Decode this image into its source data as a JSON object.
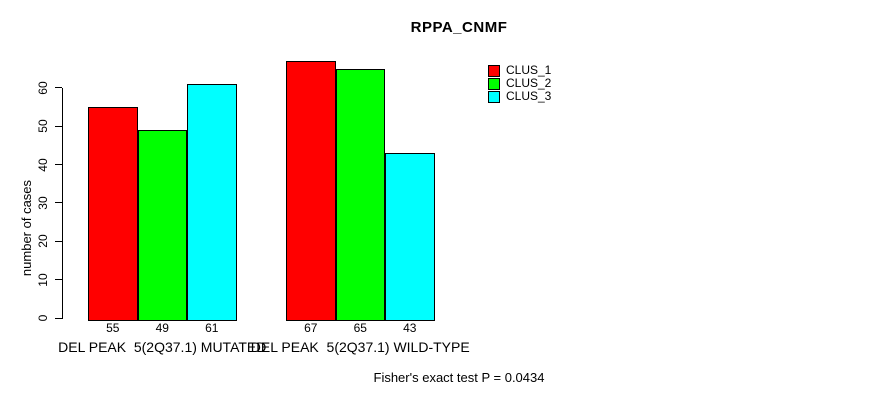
{
  "chart_data": {
    "type": "bar",
    "title": "RPPA_CNMF",
    "xlabel": "",
    "ylabel": "number of cases",
    "categories": [
      "DEL PEAK  5(2Q37.1) MUTATED",
      "DEL PEAK  5(2Q37.1) WILD-TYPE"
    ],
    "series": [
      {
        "name": "CLUS_1",
        "color": "#ff0000",
        "values": [
          55,
          67
        ]
      },
      {
        "name": "CLUS_2",
        "color": "#00ff00",
        "values": [
          49,
          65
        ]
      },
      {
        "name": "CLUS_3",
        "color": "#00ffff",
        "values": [
          61,
          43
        ]
      }
    ],
    "bar_value_labels": [
      [
        55,
        49,
        61
      ],
      [
        67,
        65,
        43
      ]
    ],
    "yticks": [
      0,
      10,
      20,
      30,
      40,
      50,
      60
    ],
    "ylim": [
      0,
      60
    ],
    "grid": false,
    "legend_position": "top-right",
    "annotation": "Fisher's exact test P = 0.0434"
  }
}
